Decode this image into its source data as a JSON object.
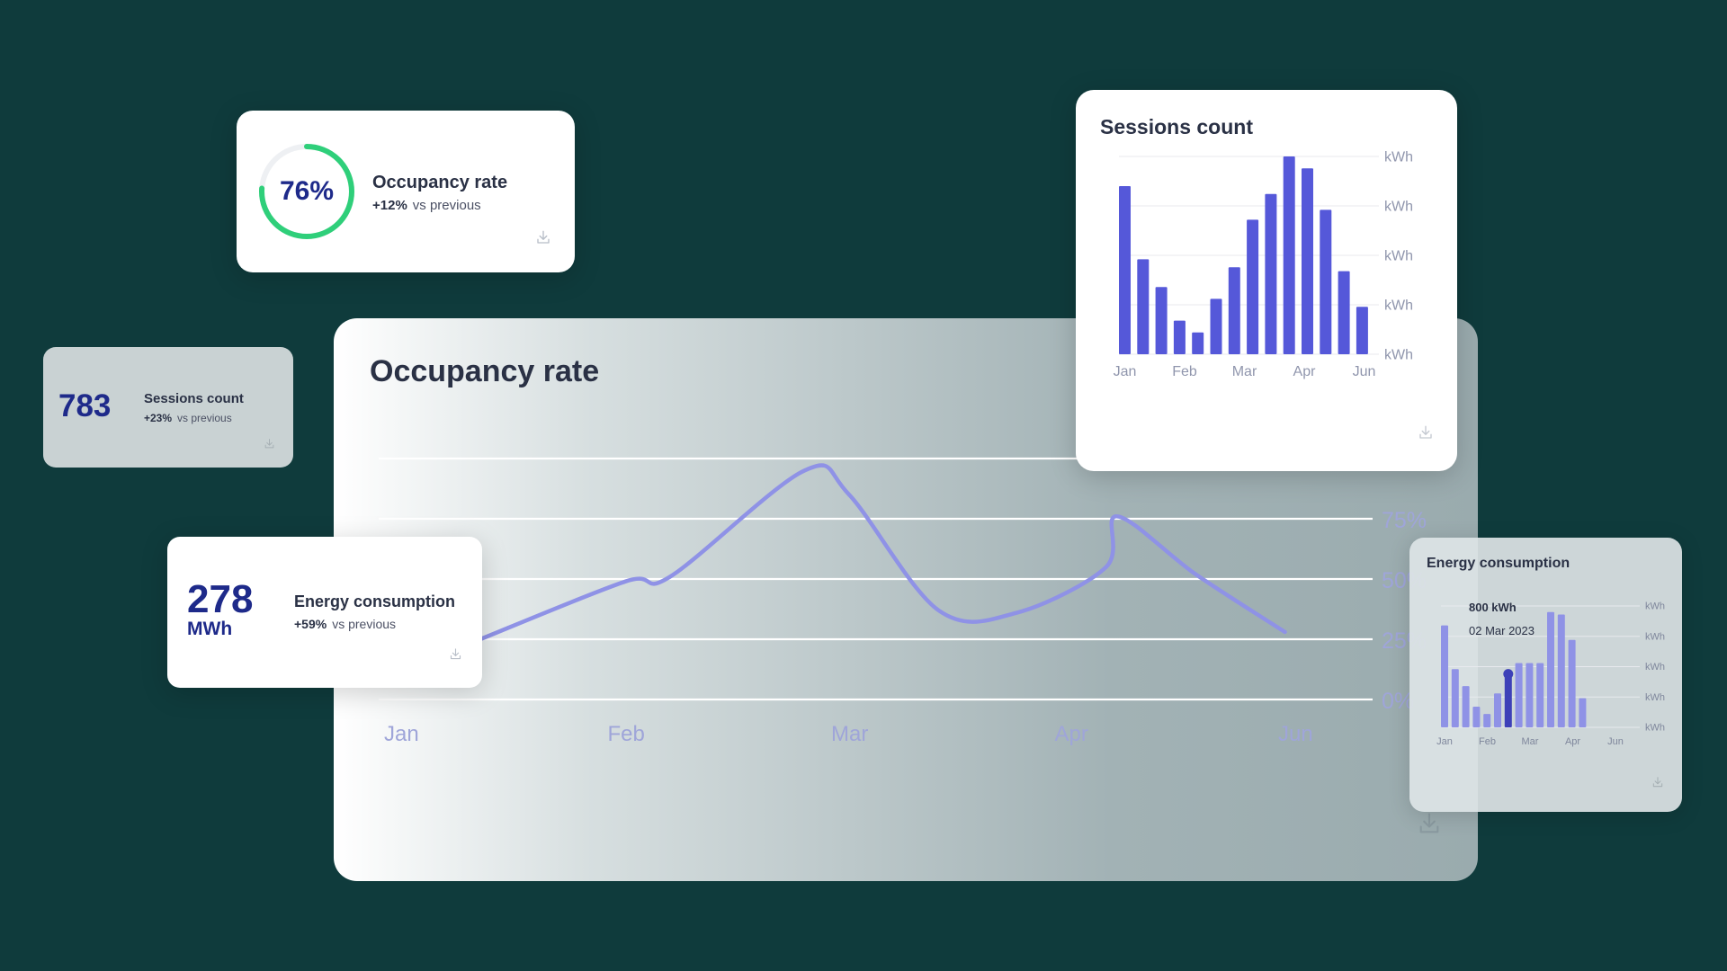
{
  "colors": {
    "background": "#0f3b3c",
    "accent": "#5558d9",
    "accent_light": "#8f92e6",
    "ring_green": "#2fcf7a",
    "number_blue": "#1e2a8a"
  },
  "occupancy_card": {
    "value": "76%",
    "ring_fraction": 0.76,
    "title": "Occupancy rate",
    "delta": "+12%",
    "delta_note": "vs previous",
    "icon": "download-icon"
  },
  "sessions_small_card": {
    "value": "783",
    "title": "Sessions count",
    "delta": "+23%",
    "delta_note": "vs previous",
    "icon": "download-icon"
  },
  "energy_small_card": {
    "value": "278",
    "unit": "MWh",
    "title": "Energy consumption",
    "delta": "+59%",
    "delta_note": "vs previous",
    "icon": "download-icon"
  },
  "main_card": {
    "title": "Occupancy rate",
    "icon": "download-icon"
  },
  "sessions_chart_card": {
    "title": "Sessions count",
    "icon": "download-icon"
  },
  "energy_chart_card": {
    "title": "Energy consumption",
    "icon": "download-icon",
    "tooltip": {
      "value": "800 kWh",
      "date": "02 Mar 2023"
    }
  },
  "chart_data": [
    {
      "id": "occupancy",
      "type": "line",
      "title": "Occupancy rate",
      "x_ticks": [
        "Jan",
        "Feb",
        "Mar",
        "Apr",
        "Jun"
      ],
      "y_ticks": [
        "0%",
        "25%",
        "50%",
        "75%"
      ],
      "ylim": [
        0,
        100
      ],
      "grid": true,
      "series": [
        {
          "points": [
            [
              0.35,
              25
            ],
            [
              1.0,
              49
            ],
            [
              1.2,
              51
            ],
            [
              1.8,
              95
            ],
            [
              2.0,
              85
            ],
            [
              2.4,
              37
            ],
            [
              2.75,
              36
            ],
            [
              3.15,
              55
            ],
            [
              3.2,
              76
            ],
            [
              3.55,
              52
            ],
            [
              3.95,
              28
            ]
          ]
        }
      ]
    },
    {
      "id": "sessions",
      "type": "bar",
      "title": "Sessions count",
      "x_ticks": [
        "Jan",
        "Feb",
        "Mar",
        "Apr",
        "Jun"
      ],
      "y_ticks": [
        "kWh",
        "kWh",
        "kWh",
        "kWh",
        "kWh"
      ],
      "values": [
        85,
        48,
        34,
        17,
        11,
        28,
        44,
        68,
        81,
        100,
        94,
        73,
        42,
        24
      ],
      "ylim": [
        0,
        100
      ],
      "grid": true
    },
    {
      "id": "energy",
      "type": "bar",
      "title": "Energy consumption",
      "x_ticks": [
        "Jan",
        "Feb",
        "Mar",
        "Apr",
        "Jun"
      ],
      "y_ticks": [
        "kWh",
        "kWh",
        "kWh",
        "kWh",
        "kWh"
      ],
      "values": [
        84,
        48,
        34,
        17,
        11,
        28,
        44,
        53,
        53,
        53,
        95,
        93,
        72,
        24
      ],
      "highlight_index": 6,
      "ylim": [
        0,
        100
      ],
      "grid": true
    }
  ]
}
